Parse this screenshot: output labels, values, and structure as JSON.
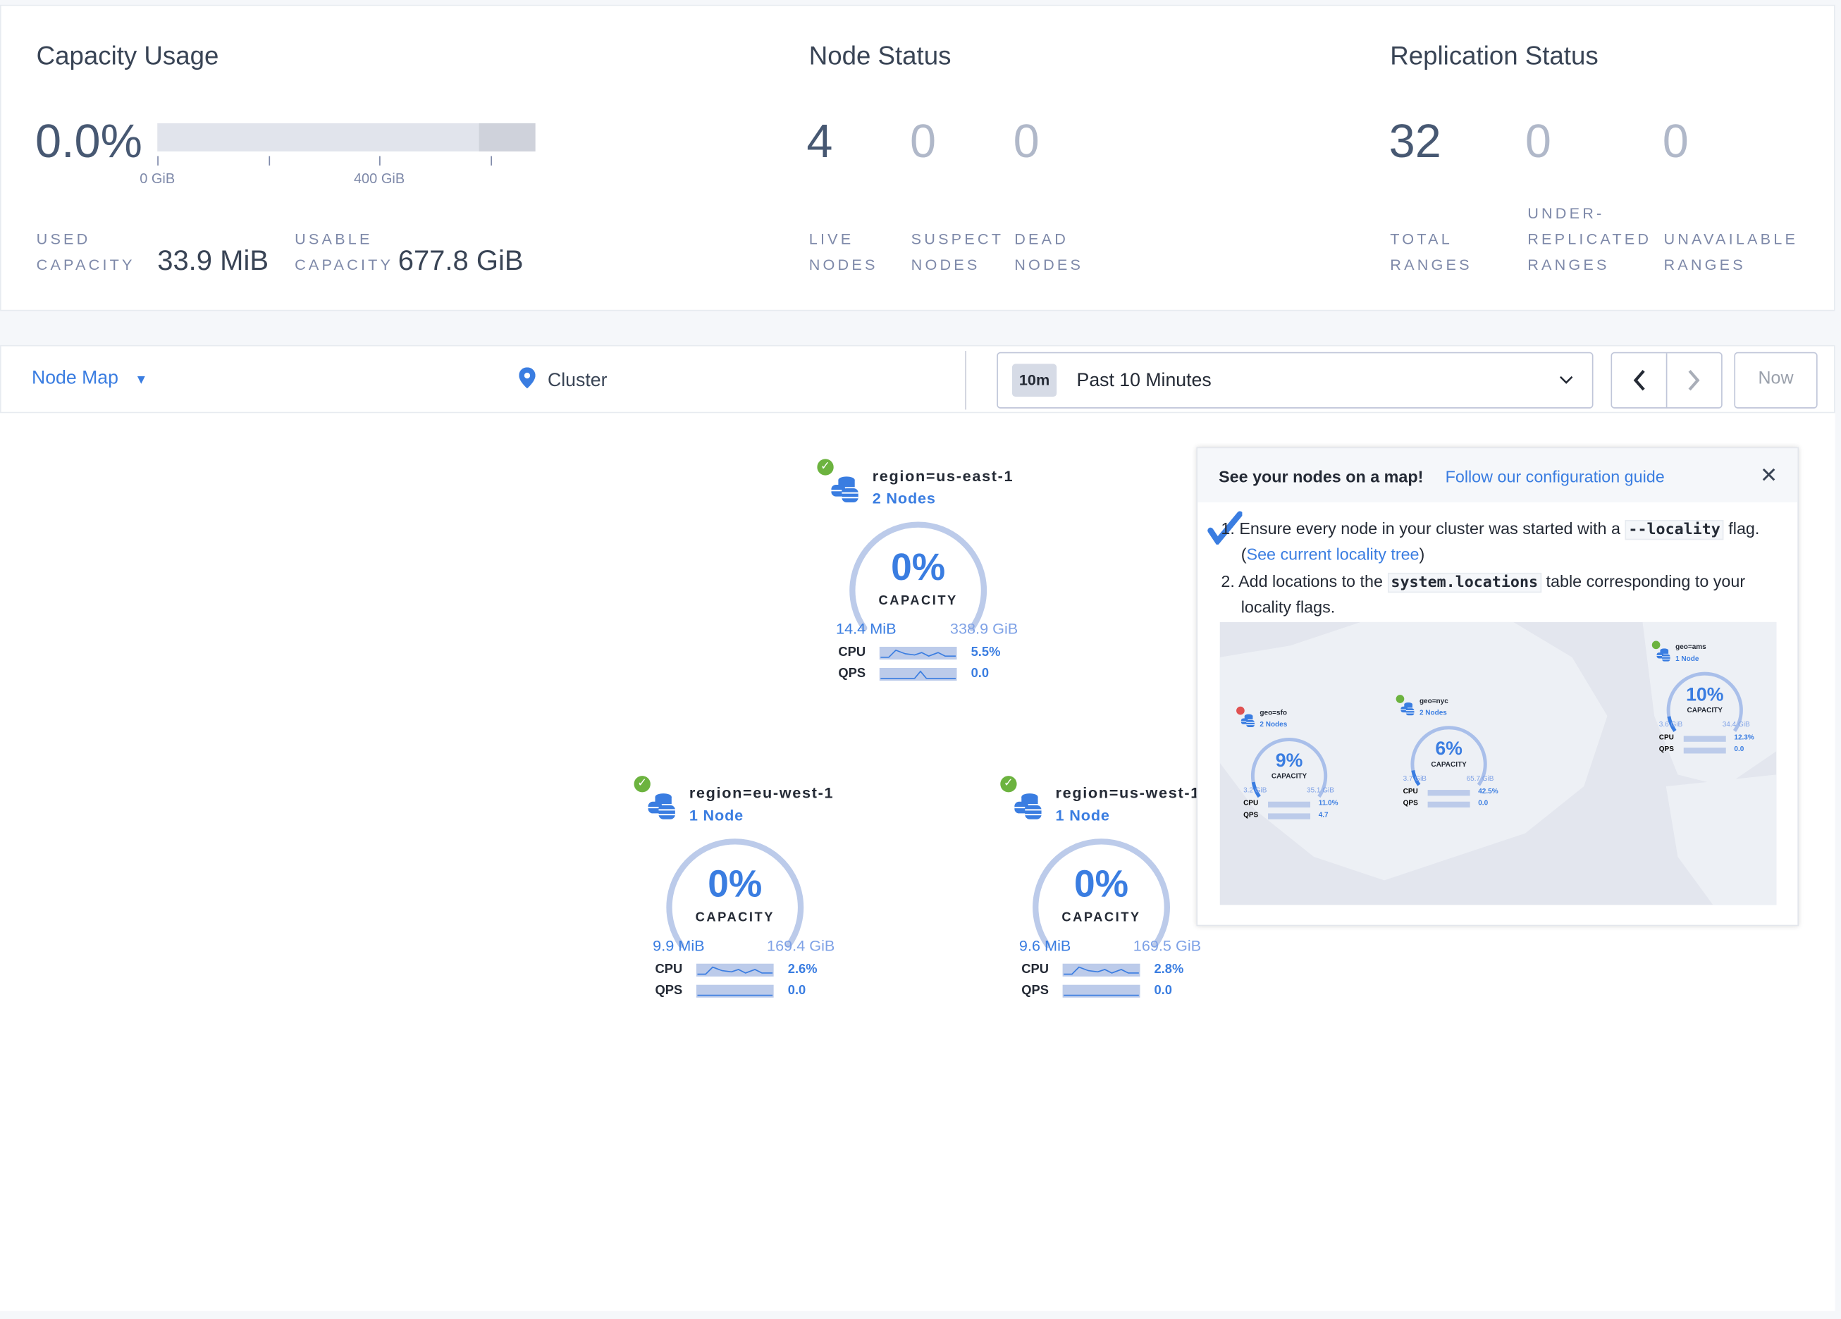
{
  "summary": {
    "capacity": {
      "title": "Capacity Usage",
      "percent": "0.0%",
      "used_fraction": 0.0,
      "axis_ticks": [
        "0 GiB",
        "400 GiB"
      ],
      "used_label_1": "USED",
      "used_label_2": "CAPACITY",
      "used_value": "33.9 MiB",
      "usable_label_1": "USABLE",
      "usable_label_2": "CAPACITY",
      "usable_value": "677.8 GiB"
    },
    "nodes": {
      "title": "Node Status",
      "stats": [
        {
          "value": "4",
          "l1": "LIVE",
          "l2": "NODES"
        },
        {
          "value": "0",
          "l1": "SUSPECT",
          "l2": "NODES"
        },
        {
          "value": "0",
          "l1": "DEAD",
          "l2": "NODES"
        }
      ]
    },
    "replication": {
      "title": "Replication Status",
      "stats": [
        {
          "value": "32",
          "l0": "",
          "l1": "TOTAL",
          "l2": "RANGES"
        },
        {
          "value": "0",
          "l0": "UNDER-",
          "l1": "REPLICATED",
          "l2": "RANGES"
        },
        {
          "value": "0",
          "l0": "",
          "l1": "UNAVAILABLE",
          "l2": "RANGES"
        }
      ]
    }
  },
  "toolbar": {
    "view_select": "Node Map",
    "breadcrumb": "Cluster",
    "time_badge": "10m",
    "time_range": "Past 10 Minutes",
    "now_label": "Now"
  },
  "localities": [
    {
      "name": "region=us-east-1",
      "count": "2 Nodes",
      "percent": "0%",
      "capacity_label": "CAPACITY",
      "used": "14.4 MiB",
      "total": "338.9 GiB",
      "cpu_label": "CPU",
      "cpu": "5.5%",
      "qps_label": "QPS",
      "qps": "0.0",
      "status": "live"
    },
    {
      "name": "region=eu-west-1",
      "count": "1 Node",
      "percent": "0%",
      "capacity_label": "CAPACITY",
      "used": "9.9 MiB",
      "total": "169.4 GiB",
      "cpu_label": "CPU",
      "cpu": "2.6%",
      "qps_label": "QPS",
      "qps": "0.0",
      "status": "live"
    },
    {
      "name": "region=us-west-1",
      "count": "1 Node",
      "percent": "0%",
      "capacity_label": "CAPACITY",
      "used": "9.6 MiB",
      "total": "169.5 GiB",
      "cpu_label": "CPU",
      "cpu": "2.8%",
      "qps_label": "QPS",
      "qps": "0.0",
      "status": "live"
    }
  ],
  "map_prompt": {
    "title": "See your nodes on a map!",
    "link": "Follow our configuration guide",
    "step1_a": "Ensure every node in your cluster was started with a",
    "step1_code": "--locality",
    "step1_b": "flag. (",
    "step1_link": "See current locality tree",
    "step1_c": ")",
    "step2_a": "Add locations to the",
    "step2_code": "system.locations",
    "step2_b": "table corresponding to your locality flags.",
    "preview": [
      {
        "name": "geo=sfo",
        "count": "2 Nodes",
        "percent": "9%",
        "used": "3.2 GiB",
        "total": "35.1 GiB",
        "cpu": "11.0%",
        "qps": "4.7"
      },
      {
        "name": "geo=nyc",
        "count": "2 Nodes",
        "percent": "6%",
        "used": "3.7 GiB",
        "total": "65.7 GiB",
        "cpu": "42.5%",
        "qps": "0.0"
      },
      {
        "name": "geo=ams",
        "count": "1 Node",
        "percent": "10%",
        "used": "3.6 GiB",
        "total": "34.4 GiB",
        "cpu": "12.3%",
        "qps": "0.0"
      }
    ],
    "preview_capacity": "CAPACITY",
    "preview_cpu": "CPU",
    "preview_qps": "QPS"
  },
  "colors": {
    "accent": "#3a7de1",
    "gauge_track": "#bccbea",
    "live": "#6cb33f",
    "suspect": "#e05252"
  }
}
